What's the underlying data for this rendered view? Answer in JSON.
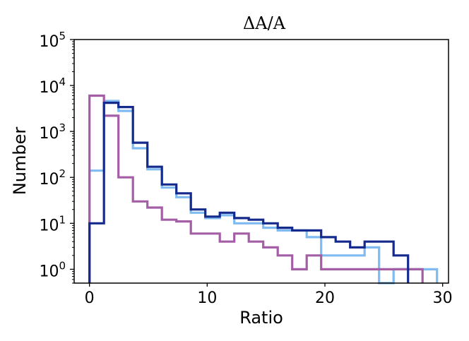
{
  "chart_data": {
    "type": "step-histogram",
    "title": "ΔA/A",
    "xlabel": "Ratio",
    "ylabel": "Number",
    "xlim": [
      -1.3,
      30.5
    ],
    "ylim": [
      0.5,
      100000
    ],
    "yscale": "log",
    "grid": false,
    "x_ticks": [
      {
        "value": 0,
        "label": "0"
      },
      {
        "value": 10,
        "label": "10"
      },
      {
        "value": 20,
        "label": "20"
      },
      {
        "value": 30,
        "label": "30"
      }
    ],
    "y_ticks": [
      {
        "value": 1,
        "base": "10",
        "exp": "0"
      },
      {
        "value": 10,
        "base": "10",
        "exp": "1"
      },
      {
        "value": 100,
        "base": "10",
        "exp": "2"
      },
      {
        "value": 1000,
        "base": "10",
        "exp": "3"
      },
      {
        "value": 10000,
        "base": "10",
        "exp": "4"
      },
      {
        "value": 100000,
        "base": "10",
        "exp": "5"
      }
    ],
    "bin_width": 1.23,
    "series": [
      {
        "color": "#7fbbf0",
        "start": 0,
        "values": [
          140,
          4600,
          2800,
          430,
          150,
          60,
          37,
          17,
          13,
          15,
          10,
          10,
          8,
          7,
          7,
          5,
          2,
          2,
          2,
          3,
          0,
          1,
          1,
          1
        ]
      },
      {
        "color": "#a45ea6",
        "start": 0,
        "values": [
          6000,
          2200,
          100,
          30,
          22,
          12,
          11,
          6,
          6,
          4,
          6,
          4,
          3,
          2,
          1,
          2,
          1,
          1,
          1,
          1,
          1,
          1,
          1
        ]
      },
      {
        "color": "#142a8c",
        "start": 0,
        "values": [
          10,
          4200,
          3400,
          570,
          170,
          70,
          45,
          20,
          14,
          17,
          13,
          12,
          10,
          8,
          7,
          7,
          5,
          4,
          3,
          4,
          4,
          2
        ]
      }
    ]
  }
}
